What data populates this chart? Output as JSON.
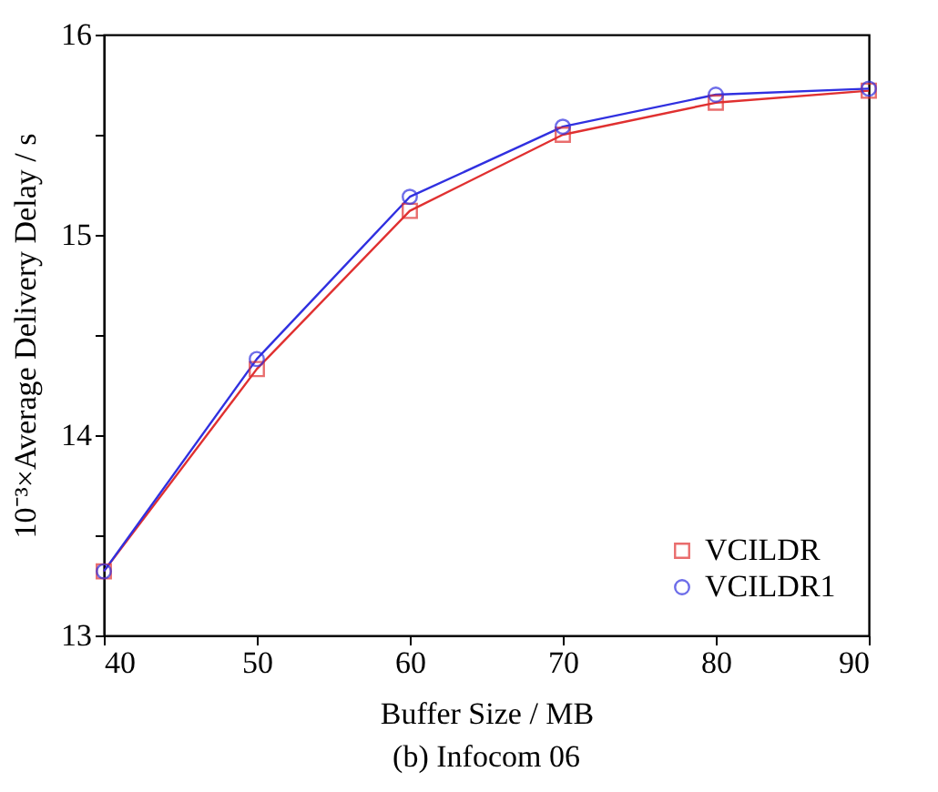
{
  "chart_data": {
    "type": "line",
    "xlabel": "Buffer Size / MB",
    "ylabel": "10⁻³×Average Delivery Delay / s",
    "annotations": [
      "(b)  Infocom 06"
    ],
    "x": [
      40,
      50,
      60,
      70,
      80,
      90
    ],
    "series": [
      {
        "name": "VCILDR",
        "color": "#e03030",
        "marker": "square",
        "values": [
          13.32,
          14.33,
          15.12,
          15.5,
          15.66,
          15.72
        ]
      },
      {
        "name": "VCILDR1",
        "color": "#3030e0",
        "marker": "circle",
        "values": [
          13.32,
          14.38,
          15.19,
          15.54,
          15.7,
          15.73
        ]
      }
    ],
    "xlim": [
      40,
      90
    ],
    "xticks": [
      40,
      50,
      60,
      70,
      80,
      90
    ],
    "ylim": [
      13,
      16
    ],
    "yticks": [
      13,
      {
        "value": 13.5,
        "label": null
      },
      14,
      {
        "value": 14.5,
        "label": null
      },
      15,
      {
        "value": 15.5,
        "label": null
      },
      16
    ],
    "grid": false,
    "legend": "bottom right",
    "line_style": "solid"
  }
}
